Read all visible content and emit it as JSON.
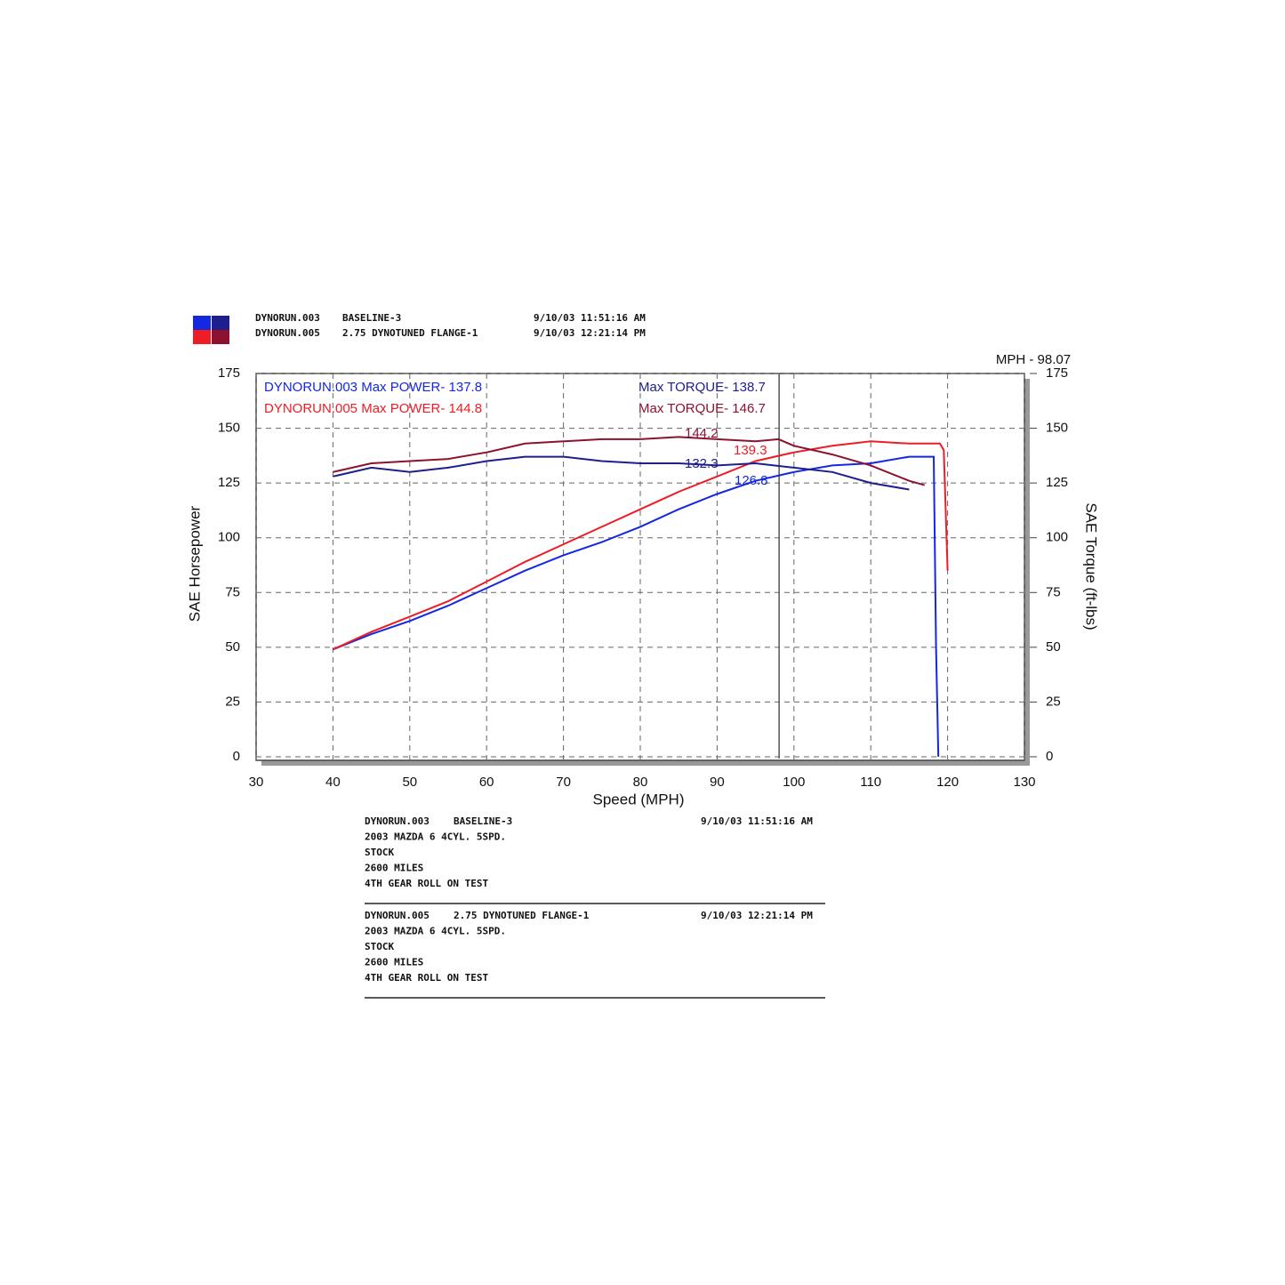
{
  "chart_data": {
    "type": "line",
    "runs": [
      {
        "run": "DYNORUN.003",
        "desc": "BASELINE-3",
        "date": "9/10/03 11:51:16 AM",
        "colors": [
          "#1428e0",
          "#1e1e8c"
        ]
      },
      {
        "run": "DYNORUN.005",
        "desc": "2.75 DYNOTUNED FLANGE-1",
        "date": "9/10/03 12:21:14 PM",
        "colors": [
          "#ee1c25",
          "#8c1230"
        ]
      }
    ],
    "cursor": {
      "label": "MPH - 98.07",
      "x": 98.07
    },
    "annotations": [
      {
        "text": "DYNORUN.003  Max POWER- 137.8",
        "color": "#1428e0"
      },
      {
        "text": "Max TORQUE- 138.7",
        "color": "#1e1e8c"
      },
      {
        "text": "DYNORUN.005  Max POWER- 144.8",
        "color": "#ee1c25"
      },
      {
        "text": "Max TORQUE- 146.7",
        "color": "#8c1230"
      }
    ],
    "cursor_values": [
      {
        "value": 144.2,
        "color": "#8c1230"
      },
      {
        "value": 139.3,
        "color": "#ee1c25"
      },
      {
        "value": 132.3,
        "color": "#1e1e8c"
      },
      {
        "value": 126.8,
        "color": "#1428e0"
      }
    ],
    "xlabel": "Speed (MPH)",
    "ylabel": "SAE Horsepower",
    "y2label": "SAE Torque (ft-lbs)",
    "xlim": [
      30,
      130
    ],
    "xticks": [
      30,
      40,
      50,
      60,
      70,
      80,
      90,
      100,
      110,
      120,
      130
    ],
    "ylim": [
      0,
      175
    ],
    "yticks": [
      0,
      25,
      50,
      75,
      100,
      125,
      150,
      175
    ],
    "y2lim": [
      0,
      175
    ],
    "y2ticks": [
      0,
      25,
      50,
      75,
      100,
      125,
      150,
      175
    ],
    "grid": true,
    "series": [
      {
        "color": "#1428e0",
        "x": [
          40,
          45,
          50,
          55,
          60,
          65,
          70,
          75,
          80,
          85,
          90,
          95,
          100,
          105,
          110,
          115,
          118.2,
          118.5,
          118.8
        ],
        "values": [
          49,
          56,
          62,
          69,
          77,
          85,
          92,
          98,
          105,
          113,
          120,
          126,
          130,
          133,
          134,
          137,
          137,
          50,
          0
        ]
      },
      {
        "color": "#ee1c25",
        "x": [
          40,
          45,
          50,
          55,
          60,
          65,
          70,
          75,
          80,
          85,
          90,
          95,
          100,
          105,
          110,
          115,
          119,
          119.5,
          120
        ],
        "values": [
          49,
          57,
          64,
          71,
          80,
          89,
          97,
          105,
          113,
          121,
          128,
          135,
          139,
          142,
          144,
          143,
          143,
          140,
          85
        ]
      },
      {
        "color": "#1e1e8c",
        "axis": "y2",
        "x": [
          40,
          45,
          50,
          55,
          60,
          65,
          70,
          75,
          80,
          85,
          90,
          95,
          100,
          105,
          110,
          115
        ],
        "values": [
          128,
          132,
          130,
          132,
          135,
          137,
          137,
          135,
          134,
          134,
          133,
          134,
          132,
          130,
          125,
          122
        ]
      },
      {
        "color": "#8c1230",
        "axis": "y2",
        "x": [
          40,
          45,
          50,
          55,
          60,
          65,
          70,
          75,
          80,
          85,
          90,
          95,
          98,
          100,
          105,
          110,
          115,
          117
        ],
        "values": [
          130,
          134,
          135,
          136,
          139,
          143,
          144,
          145,
          145,
          146,
          145,
          144,
          145,
          142,
          138,
          133,
          126,
          124
        ]
      }
    ],
    "notes": [
      {
        "run": "DYNORUN.003",
        "desc": "BASELINE-3",
        "date": "9/10/03 11:51:16 AM",
        "lines": [
          "2003 MAZDA 6 4CYL. 5SPD.",
          "STOCK",
          "2600 MILES",
          "4TH GEAR ROLL ON TEST"
        ]
      },
      {
        "run": "DYNORUN.005",
        "desc": "2.75 DYNOTUNED FLANGE-1",
        "date": "9/10/03 12:21:14 PM",
        "lines": [
          "2003 MAZDA 6 4CYL. 5SPD.",
          "STOCK",
          "2600 MILES",
          "4TH GEAR ROLL ON TEST"
        ]
      }
    ]
  }
}
